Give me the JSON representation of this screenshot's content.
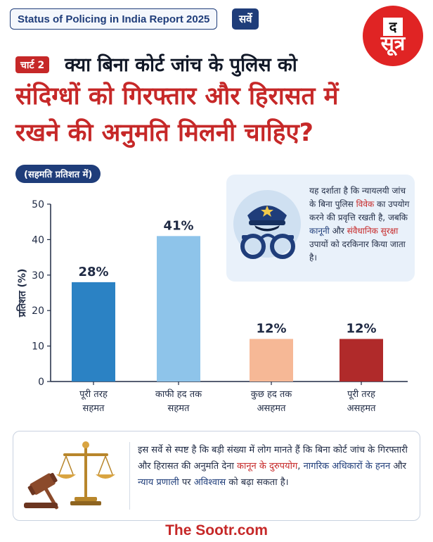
{
  "header": {
    "report_title": "Status of Policing in India Report 2025",
    "survey_tag": "सर्वे"
  },
  "logo": {
    "top": "द",
    "main": "सूत्र"
  },
  "title": {
    "chart_tag": "चार्ट 2",
    "line1": "क्या बिना कोर्ट जांच के पुलिस को",
    "line2": "संदिग्धों को गिरफ्तार और हिरासत में",
    "line3": "रखने की अनुमति मिलनी चाहिए?"
  },
  "unit_label": "(सहमति प्रतिशत में)",
  "chart_data": {
    "type": "bar",
    "categories": [
      [
        "पूरी तरह",
        "सहमत"
      ],
      [
        "काफी हद तक",
        "सहमत"
      ],
      [
        "कुछ हद तक",
        "असहमत"
      ],
      [
        "पूरी तरह",
        "असहमत"
      ]
    ],
    "values": [
      28,
      41,
      12,
      12
    ],
    "value_labels": [
      "28%",
      "41%",
      "12%",
      "12%"
    ],
    "colors": [
      "#2b82c4",
      "#8ec4ea",
      "#f6b896",
      "#b02a2a"
    ],
    "ylabel": "प्रतिशत (%)",
    "ylim": [
      0,
      50
    ],
    "yticks": [
      0,
      10,
      20,
      30,
      40,
      50
    ],
    "grid": false
  },
  "info": {
    "t1": "यह दर्शाता है कि न्यायलयी जांच के बिना पुलिस ",
    "h1": "विवेक",
    "t2": " का उपयोग करने की प्रवृत्ति रखती है, जबकि ",
    "h2": "कानूनी",
    "t3": " और ",
    "h3": "संवैधानिक सुरक्षा",
    "t4": " उपायों को दरकिनार किया जाता है।"
  },
  "summary": {
    "t1": "इस सर्वे से स्पष्ट है कि बड़ी संख्या में लोग मानते हैं कि बिना कोर्ट जांच के गिरफ्तारी और हिरासत की अनुमति देना ",
    "h1": "कानून के दुरुपयोग",
    "t2": ", ",
    "h2": "नागरिक अधिकारों के हनन",
    "t3": " और ",
    "h3": "न्याय प्रणाली",
    "t4": " पर ",
    "h4": "अविश्वास",
    "t5": " को बढ़ा सकता है।"
  },
  "footer": "The Sootr.com"
}
